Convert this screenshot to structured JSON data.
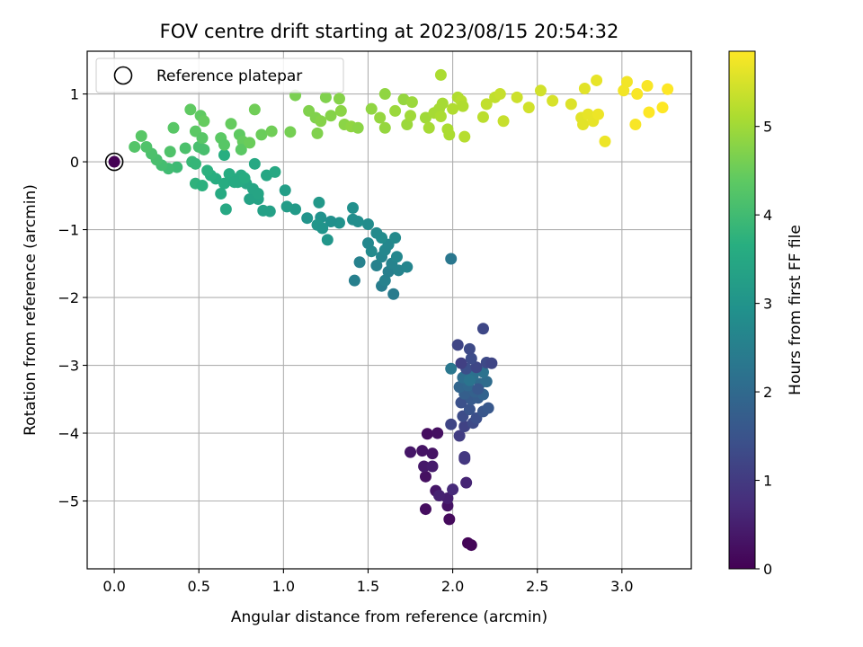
{
  "chart_data": {
    "type": "scatter",
    "title": "FOV centre drift starting at 2023/08/15 20:54:32",
    "xlabel": "Angular distance from reference (arcmin)",
    "ylabel": "Rotation from reference (arcmin)",
    "xlim": [
      -0.16,
      3.41
    ],
    "ylim": [
      -6.0,
      1.63
    ],
    "xticks": [
      0.0,
      0.5,
      1.0,
      1.5,
      2.0,
      2.5,
      3.0
    ],
    "xtick_labels": [
      "0.0",
      "0.5",
      "1.0",
      "1.5",
      "2.0",
      "2.5",
      "3.0"
    ],
    "yticks": [
      1,
      0,
      -1,
      -2,
      -3,
      -4,
      -5
    ],
    "ytick_labels": [
      "1",
      "0",
      "−1",
      "−2",
      "−3",
      "−4",
      "−5"
    ],
    "grid": true,
    "legend": {
      "position": "top-left",
      "entries": [
        "Reference platepar"
      ]
    },
    "reference_point": {
      "x": 0.0,
      "y": 0.0
    },
    "colorbar": {
      "label": "Hours from first FF file",
      "range": [
        0,
        5.85
      ],
      "ticks": [
        0,
        1,
        2,
        3,
        4,
        5
      ],
      "tick_labels": [
        "0",
        "1",
        "2",
        "3",
        "4",
        "5"
      ],
      "colormap": "viridis"
    },
    "points": [
      {
        "x": 2.09,
        "y": -5.62,
        "t": 0.05
      },
      {
        "x": 2.11,
        "y": -5.65,
        "t": 0.08
      },
      {
        "x": 1.98,
        "y": -5.27,
        "t": 0.15
      },
      {
        "x": 1.84,
        "y": -5.12,
        "t": 0.2
      },
      {
        "x": 1.97,
        "y": -5.07,
        "t": 0.3
      },
      {
        "x": 1.9,
        "y": -4.85,
        "t": 0.35
      },
      {
        "x": 1.97,
        "y": -4.96,
        "t": 0.5
      },
      {
        "x": 1.92,
        "y": -4.92,
        "t": 0.55
      },
      {
        "x": 1.84,
        "y": -4.64,
        "t": 0.25
      },
      {
        "x": 1.83,
        "y": -4.49,
        "t": 0.4
      },
      {
        "x": 1.88,
        "y": -4.49,
        "t": 0.45
      },
      {
        "x": 1.88,
        "y": -4.3,
        "t": 0.3
      },
      {
        "x": 1.75,
        "y": -4.28,
        "t": 0.35
      },
      {
        "x": 1.82,
        "y": -4.26,
        "t": 0.3
      },
      {
        "x": 1.85,
        "y": -4.01,
        "t": 0.2
      },
      {
        "x": 1.91,
        "y": -4.0,
        "t": 0.25
      },
      {
        "x": 2.08,
        "y": -4.73,
        "t": 0.6
      },
      {
        "x": 2.07,
        "y": -4.38,
        "t": 0.9
      },
      {
        "x": 2.07,
        "y": -4.35,
        "t": 0.95
      },
      {
        "x": 2.0,
        "y": -4.83,
        "t": 0.7
      },
      {
        "x": 2.04,
        "y": -4.04,
        "t": 1.05
      },
      {
        "x": 2.07,
        "y": -3.9,
        "t": 1.15
      },
      {
        "x": 1.99,
        "y": -3.87,
        "t": 1.2
      },
      {
        "x": 2.12,
        "y": -3.85,
        "t": 1.3
      },
      {
        "x": 2.14,
        "y": -3.78,
        "t": 1.4
      },
      {
        "x": 2.06,
        "y": -3.75,
        "t": 1.35
      },
      {
        "x": 2.1,
        "y": -3.65,
        "t": 1.5
      },
      {
        "x": 2.18,
        "y": -3.68,
        "t": 1.55
      },
      {
        "x": 2.21,
        "y": -3.63,
        "t": 1.6
      },
      {
        "x": 2.05,
        "y": -3.55,
        "t": 1.45
      },
      {
        "x": 2.11,
        "y": -3.5,
        "t": 1.65
      },
      {
        "x": 2.15,
        "y": -3.48,
        "t": 1.7
      },
      {
        "x": 2.07,
        "y": -3.42,
        "t": 1.75
      },
      {
        "x": 2.13,
        "y": -3.39,
        "t": 1.8
      },
      {
        "x": 2.18,
        "y": -3.43,
        "t": 1.85
      },
      {
        "x": 2.04,
        "y": -3.32,
        "t": 1.9
      },
      {
        "x": 2.09,
        "y": -3.3,
        "t": 1.95
      },
      {
        "x": 2.16,
        "y": -3.27,
        "t": 2.0
      },
      {
        "x": 2.2,
        "y": -3.24,
        "t": 2.05
      },
      {
        "x": 2.06,
        "y": -3.18,
        "t": 2.1
      },
      {
        "x": 2.12,
        "y": -3.15,
        "t": 2.15
      },
      {
        "x": 2.18,
        "y": -3.1,
        "t": 2.2
      },
      {
        "x": 2.08,
        "y": -3.05,
        "t": 1.4
      },
      {
        "x": 2.14,
        "y": -3.03,
        "t": 1.25
      },
      {
        "x": 2.2,
        "y": -2.96,
        "t": 1.3
      },
      {
        "x": 2.23,
        "y": -2.97,
        "t": 1.2
      },
      {
        "x": 2.05,
        "y": -2.97,
        "t": 1.1
      },
      {
        "x": 2.11,
        "y": -2.9,
        "t": 1.35
      },
      {
        "x": 2.1,
        "y": -2.76,
        "t": 1.3
      },
      {
        "x": 2.03,
        "y": -2.7,
        "t": 1.2
      },
      {
        "x": 2.18,
        "y": -2.46,
        "t": 1.25
      },
      {
        "x": 1.99,
        "y": -3.05,
        "t": 2.3
      },
      {
        "x": 2.1,
        "y": -3.22,
        "t": 2.25
      },
      {
        "x": 2.15,
        "y": -3.35,
        "t": 1.6
      },
      {
        "x": 1.99,
        "y": -1.43,
        "t": 2.3
      },
      {
        "x": 1.65,
        "y": -1.95,
        "t": 2.4
      },
      {
        "x": 1.58,
        "y": -1.83,
        "t": 2.45
      },
      {
        "x": 1.42,
        "y": -1.75,
        "t": 2.5
      },
      {
        "x": 1.6,
        "y": -1.75,
        "t": 2.55
      },
      {
        "x": 1.62,
        "y": -1.62,
        "t": 2.5
      },
      {
        "x": 1.68,
        "y": -1.6,
        "t": 2.6
      },
      {
        "x": 1.73,
        "y": -1.55,
        "t": 2.65
      },
      {
        "x": 1.55,
        "y": -1.53,
        "t": 2.55
      },
      {
        "x": 1.64,
        "y": -1.5,
        "t": 2.6
      },
      {
        "x": 1.45,
        "y": -1.48,
        "t": 2.55
      },
      {
        "x": 1.58,
        "y": -1.4,
        "t": 2.65
      },
      {
        "x": 1.67,
        "y": -1.4,
        "t": 2.7
      },
      {
        "x": 1.6,
        "y": -1.3,
        "t": 2.7
      },
      {
        "x": 1.52,
        "y": -1.32,
        "t": 2.75
      },
      {
        "x": 1.62,
        "y": -1.22,
        "t": 2.7
      },
      {
        "x": 1.66,
        "y": -1.12,
        "t": 2.75
      },
      {
        "x": 1.58,
        "y": -1.12,
        "t": 2.8
      },
      {
        "x": 1.55,
        "y": -1.05,
        "t": 2.75
      },
      {
        "x": 1.5,
        "y": -0.92,
        "t": 2.8
      },
      {
        "x": 1.44,
        "y": -0.88,
        "t": 2.85
      },
      {
        "x": 1.41,
        "y": -0.68,
        "t": 2.9
      },
      {
        "x": 1.33,
        "y": -0.9,
        "t": 2.95
      },
      {
        "x": 1.28,
        "y": -0.88,
        "t": 2.9
      },
      {
        "x": 1.22,
        "y": -0.82,
        "t": 2.95
      },
      {
        "x": 1.14,
        "y": -0.83,
        "t": 3.0
      },
      {
        "x": 1.2,
        "y": -0.93,
        "t": 3.05
      },
      {
        "x": 1.23,
        "y": -0.98,
        "t": 3.0
      },
      {
        "x": 1.26,
        "y": -1.15,
        "t": 3.05
      },
      {
        "x": 1.21,
        "y": -0.6,
        "t": 3.1
      },
      {
        "x": 1.41,
        "y": -0.85,
        "t": 2.85
      },
      {
        "x": 1.5,
        "y": -1.2,
        "t": 2.7
      },
      {
        "x": 1.07,
        "y": -0.7,
        "t": 3.15
      },
      {
        "x": 1.02,
        "y": -0.66,
        "t": 3.2
      },
      {
        "x": 1.01,
        "y": -0.42,
        "t": 3.25
      },
      {
        "x": 0.92,
        "y": -0.73,
        "t": 3.3
      },
      {
        "x": 0.88,
        "y": -0.72,
        "t": 3.3
      },
      {
        "x": 0.85,
        "y": -0.55,
        "t": 3.35
      },
      {
        "x": 0.8,
        "y": -0.55,
        "t": 3.35
      },
      {
        "x": 0.82,
        "y": -0.4,
        "t": 3.4
      },
      {
        "x": 0.85,
        "y": -0.47,
        "t": 3.4
      },
      {
        "x": 0.78,
        "y": -0.32,
        "t": 3.45
      },
      {
        "x": 0.9,
        "y": -0.2,
        "t": 3.45
      },
      {
        "x": 0.95,
        "y": -0.15,
        "t": 3.5
      },
      {
        "x": 0.83,
        "y": -0.03,
        "t": 3.5
      },
      {
        "x": 0.75,
        "y": -0.2,
        "t": 3.55
      },
      {
        "x": 0.7,
        "y": -0.25,
        "t": 3.55
      },
      {
        "x": 0.65,
        "y": -0.32,
        "t": 3.6
      },
      {
        "x": 0.6,
        "y": -0.25,
        "t": 3.6
      },
      {
        "x": 0.63,
        "y": -0.47,
        "t": 3.55
      },
      {
        "x": 0.66,
        "y": -0.7,
        "t": 3.5
      },
      {
        "x": 0.73,
        "y": -0.3,
        "t": 3.55
      },
      {
        "x": 0.77,
        "y": -0.24,
        "t": 3.6
      },
      {
        "x": 0.57,
        "y": -0.2,
        "t": 3.65
      },
      {
        "x": 0.55,
        "y": -0.13,
        "t": 3.7
      },
      {
        "x": 0.65,
        "y": 0.1,
        "t": 3.65
      },
      {
        "x": 0.48,
        "y": -0.32,
        "t": 3.75
      },
      {
        "x": 0.52,
        "y": -0.35,
        "t": 3.7
      },
      {
        "x": 0.68,
        "y": -0.18,
        "t": 3.6
      },
      {
        "x": 0.71,
        "y": -0.3,
        "t": 3.55
      },
      {
        "x": 0.46,
        "y": 0.0,
        "t": 3.9
      },
      {
        "x": 0.48,
        "y": -0.03,
        "t": 3.85
      },
      {
        "x": 0.37,
        "y": -0.08,
        "t": 3.95
      },
      {
        "x": 0.32,
        "y": -0.1,
        "t": 4.0
      },
      {
        "x": 0.28,
        "y": -0.05,
        "t": 4.05
      },
      {
        "x": 0.25,
        "y": 0.03,
        "t": 4.1
      },
      {
        "x": 0.22,
        "y": 0.12,
        "t": 4.15
      },
      {
        "x": 0.19,
        "y": 0.22,
        "t": 4.2
      },
      {
        "x": 0.12,
        "y": 0.22,
        "t": 4.25
      },
      {
        "x": 0.16,
        "y": 0.38,
        "t": 4.3
      },
      {
        "x": 0.33,
        "y": 0.15,
        "t": 4.2
      },
      {
        "x": 0.42,
        "y": 0.2,
        "t": 4.15
      },
      {
        "x": 0.5,
        "y": 0.22,
        "t": 4.1
      },
      {
        "x": 0.53,
        "y": 0.18,
        "t": 4.1
      },
      {
        "x": 0.35,
        "y": 0.5,
        "t": 4.3
      },
      {
        "x": 0.48,
        "y": 0.45,
        "t": 4.35
      },
      {
        "x": 0.52,
        "y": 0.35,
        "t": 4.3
      },
      {
        "x": 0.45,
        "y": 0.77,
        "t": 4.4
      },
      {
        "x": 0.51,
        "y": 0.68,
        "t": 4.4
      },
      {
        "x": 0.53,
        "y": 0.6,
        "t": 4.45
      },
      {
        "x": 0.63,
        "y": 0.35,
        "t": 4.35
      },
      {
        "x": 0.65,
        "y": 0.25,
        "t": 4.3
      },
      {
        "x": 0.69,
        "y": 0.56,
        "t": 4.45
      },
      {
        "x": 0.74,
        "y": 0.4,
        "t": 4.4
      },
      {
        "x": 0.76,
        "y": 0.3,
        "t": 4.45
      },
      {
        "x": 0.75,
        "y": 0.18,
        "t": 4.35
      },
      {
        "x": 0.8,
        "y": 0.28,
        "t": 4.5
      },
      {
        "x": 0.83,
        "y": 0.77,
        "t": 4.55
      },
      {
        "x": 0.87,
        "y": 0.4,
        "t": 4.5
      },
      {
        "x": 0.93,
        "y": 0.45,
        "t": 4.55
      },
      {
        "x": 1.04,
        "y": 0.44,
        "t": 4.6
      },
      {
        "x": 1.07,
        "y": 0.98,
        "t": 4.65
      },
      {
        "x": 1.15,
        "y": 0.75,
        "t": 4.7
      },
      {
        "x": 1.19,
        "y": 0.65,
        "t": 4.7
      },
      {
        "x": 1.22,
        "y": 0.6,
        "t": 4.75
      },
      {
        "x": 1.25,
        "y": 0.95,
        "t": 4.7
      },
      {
        "x": 1.28,
        "y": 0.68,
        "t": 4.75
      },
      {
        "x": 1.2,
        "y": 0.42,
        "t": 4.7
      },
      {
        "x": 1.33,
        "y": 0.93,
        "t": 4.75
      },
      {
        "x": 1.34,
        "y": 0.75,
        "t": 4.8
      },
      {
        "x": 1.36,
        "y": 0.55,
        "t": 4.8
      },
      {
        "x": 1.4,
        "y": 0.52,
        "t": 4.85
      },
      {
        "x": 1.44,
        "y": 0.5,
        "t": 4.8
      },
      {
        "x": 1.52,
        "y": 0.78,
        "t": 4.85
      },
      {
        "x": 1.57,
        "y": 0.65,
        "t": 4.9
      },
      {
        "x": 1.6,
        "y": 1.0,
        "t": 4.85
      },
      {
        "x": 1.6,
        "y": 0.5,
        "t": 4.9
      },
      {
        "x": 1.66,
        "y": 0.75,
        "t": 4.95
      },
      {
        "x": 1.71,
        "y": 0.92,
        "t": 4.9
      },
      {
        "x": 1.73,
        "y": 0.55,
        "t": 4.95
      },
      {
        "x": 1.75,
        "y": 0.68,
        "t": 5.0
      },
      {
        "x": 1.76,
        "y": 0.88,
        "t": 4.95
      },
      {
        "x": 1.84,
        "y": 0.65,
        "t": 5.0
      },
      {
        "x": 1.86,
        "y": 0.5,
        "t": 5.05
      },
      {
        "x": 1.89,
        "y": 0.72,
        "t": 5.05
      },
      {
        "x": 1.92,
        "y": 0.78,
        "t": 5.05
      },
      {
        "x": 1.93,
        "y": 0.67,
        "t": 5.1
      },
      {
        "x": 1.94,
        "y": 0.86,
        "t": 5.05
      },
      {
        "x": 1.97,
        "y": 0.48,
        "t": 5.1
      },
      {
        "x": 1.98,
        "y": 0.4,
        "t": 5.1
      },
      {
        "x": 2.0,
        "y": 0.78,
        "t": 5.15
      },
      {
        "x": 2.03,
        "y": 0.95,
        "t": 5.15
      },
      {
        "x": 2.05,
        "y": 0.9,
        "t": 5.2
      },
      {
        "x": 2.06,
        "y": 0.82,
        "t": 5.15
      },
      {
        "x": 2.07,
        "y": 0.37,
        "t": 5.2
      },
      {
        "x": 1.93,
        "y": 1.28,
        "t": 5.1
      },
      {
        "x": 2.18,
        "y": 0.66,
        "t": 5.25
      },
      {
        "x": 2.2,
        "y": 0.85,
        "t": 5.3
      },
      {
        "x": 2.25,
        "y": 0.95,
        "t": 5.3
      },
      {
        "x": 2.28,
        "y": 1.0,
        "t": 5.35
      },
      {
        "x": 2.3,
        "y": 0.6,
        "t": 5.35
      },
      {
        "x": 2.38,
        "y": 0.95,
        "t": 5.4
      },
      {
        "x": 2.45,
        "y": 0.8,
        "t": 5.45
      },
      {
        "x": 2.52,
        "y": 1.05,
        "t": 5.45
      },
      {
        "x": 2.59,
        "y": 0.9,
        "t": 5.5
      },
      {
        "x": 2.7,
        "y": 0.85,
        "t": 5.55
      },
      {
        "x": 2.76,
        "y": 0.65,
        "t": 5.6
      },
      {
        "x": 2.77,
        "y": 0.55,
        "t": 5.6
      },
      {
        "x": 2.78,
        "y": 1.08,
        "t": 5.6
      },
      {
        "x": 2.8,
        "y": 0.7,
        "t": 5.65
      },
      {
        "x": 2.83,
        "y": 0.6,
        "t": 5.65
      },
      {
        "x": 2.85,
        "y": 1.2,
        "t": 5.65
      },
      {
        "x": 2.86,
        "y": 0.7,
        "t": 5.7
      },
      {
        "x": 2.9,
        "y": 0.3,
        "t": 5.7
      },
      {
        "x": 3.01,
        "y": 1.05,
        "t": 5.75
      },
      {
        "x": 3.03,
        "y": 1.18,
        "t": 5.75
      },
      {
        "x": 3.08,
        "y": 0.55,
        "t": 5.8
      },
      {
        "x": 3.09,
        "y": 1.0,
        "t": 5.8
      },
      {
        "x": 3.15,
        "y": 1.12,
        "t": 5.8
      },
      {
        "x": 3.16,
        "y": 0.73,
        "t": 5.85
      },
      {
        "x": 3.24,
        "y": 0.8,
        "t": 5.85
      },
      {
        "x": 3.27,
        "y": 1.07,
        "t": 5.85
      }
    ]
  }
}
